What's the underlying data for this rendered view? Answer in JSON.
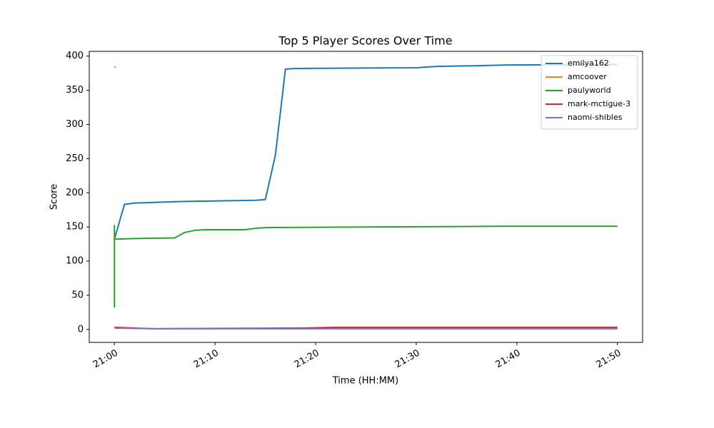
{
  "chart_data": {
    "type": "line",
    "title": "Top 5 Player Scores Over Time",
    "x_label": "Time (HH:MM)",
    "y_label": "Score",
    "xlim": [
      "20:57.5",
      "21:52.5"
    ],
    "xticks": [
      "21:00",
      "21:10",
      "21:20",
      "21:30",
      "21:40",
      "21:50"
    ],
    "ylim": [
      -19,
      407
    ],
    "yticks": [
      0,
      50,
      100,
      150,
      200,
      250,
      300,
      350,
      400
    ],
    "grid": false,
    "legend": "upper right",
    "series": [
      {
        "name": "emilya162",
        "color": "#1f77b4",
        "x": [
          "21:00",
          "21:01",
          "21:02",
          "21:06",
          "21:14",
          "21:15",
          "21:16",
          "21:17",
          "21:18",
          "21:30",
          "21:32",
          "21:36",
          "21:39",
          "21:50"
        ],
        "values": [
          132,
          183,
          185,
          187,
          189,
          190,
          255,
          381,
          382,
          383,
          385,
          386,
          387,
          388
        ]
      },
      {
        "name": "amcoover",
        "color": "#ff7f0e",
        "x": [
          "21:00"
        ],
        "values": [
          384
        ]
      },
      {
        "name": "paulyworld",
        "color": "#2ca02c",
        "x": [
          "21:00",
          "21:00",
          "21:00",
          "21:02",
          "21:06",
          "21:07",
          "21:08",
          "21:09",
          "21:13",
          "21:14",
          "21:15",
          "21:26",
          "21:39",
          "21:50"
        ],
        "values": [
          153,
          33,
          132,
          133,
          134,
          142,
          145,
          146,
          146,
          148,
          149,
          150,
          151,
          151
        ]
      },
      {
        "name": "mark-mctigue-3",
        "color": "#d62728",
        "x": [
          "21:00",
          "21:04",
          "21:19",
          "21:22",
          "21:50"
        ],
        "values": [
          3,
          1,
          2,
          3,
          3
        ]
      },
      {
        "name": "naomi-shibles",
        "color": "#9467bd",
        "x": [
          "21:00",
          "21:04",
          "21:50"
        ],
        "values": [
          2,
          1,
          1
        ]
      }
    ]
  }
}
